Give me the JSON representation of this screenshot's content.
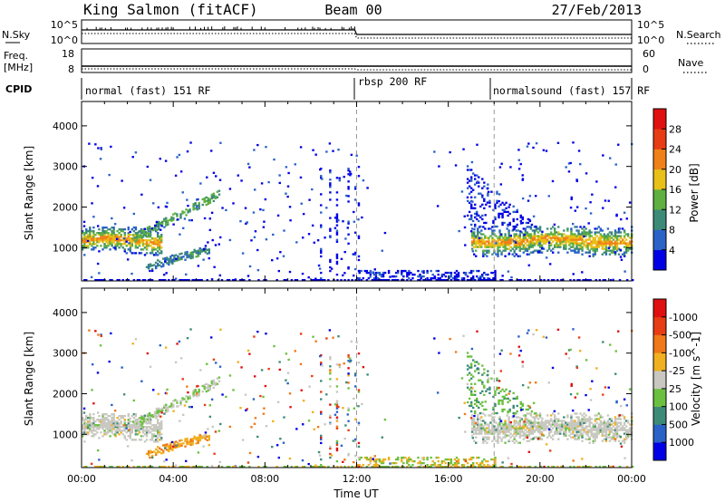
{
  "header": {
    "station": "King Salmon (fitACF)",
    "beam": "Beam 00",
    "date": "27/Feb/2013"
  },
  "strip_sky": {
    "left_label": "N.Sky",
    "right_label": "N.Search",
    "left_ticks": [
      "10^5",
      "10^0"
    ],
    "right_ticks": [
      "10^5",
      "10^0"
    ]
  },
  "strip_freq": {
    "left_label_1": "Freq.",
    "left_label_2": "[MHz]",
    "right_label": "Nave",
    "left_ticks": [
      "18",
      "8"
    ],
    "right_ticks": [
      "60",
      "0"
    ]
  },
  "cpid": {
    "label": "CPID",
    "segments": [
      {
        "label": "normal (fast) 151 RF",
        "start_hour": 0,
        "end_hour": 12
      },
      {
        "label": "rbsp 200 RF",
        "start_hour": 12,
        "end_hour": 18
      },
      {
        "label": "normalsound (fast) 157 RF",
        "start_hour": 18,
        "end_hour": 24
      }
    ]
  },
  "chart_data": [
    {
      "type": "heatmap",
      "title": "",
      "xlabel": "",
      "ylabel": "Slant Range [km]",
      "xlim": [
        0,
        24
      ],
      "ylim": [
        180,
        4600
      ],
      "yticks": [
        1000,
        2000,
        3000,
        4000
      ],
      "colorbar": {
        "label": "Power [dB]",
        "ticks": [
          "4",
          "8",
          "12",
          "16",
          "20",
          "24",
          "28"
        ],
        "colors": [
          "#0000e6",
          "#2a62c8",
          "#3e8a78",
          "#5fb040",
          "#e8c018",
          "#f08018",
          "#e83c14",
          "#e01010"
        ]
      },
      "echo_bands": [
        {
          "name": "main",
          "t_start": 0.0,
          "t_end": 3.5,
          "range_center": 1150,
          "range_width": 350
        },
        {
          "name": "rising arc",
          "t_start": 2.2,
          "t_end": 6.0,
          "range_start": 1200,
          "range_end": 2300
        },
        {
          "name": "lower arc",
          "t_start": 2.8,
          "t_end": 5.6,
          "range_start": 500,
          "range_end": 950
        },
        {
          "name": "recovery",
          "t_start": 17.0,
          "t_end": 24.0,
          "range_center": 1150,
          "range_width": 380
        }
      ]
    },
    {
      "type": "heatmap",
      "title": "",
      "xlabel": "Time UT",
      "ylabel": "Slant Range [km]",
      "xlim": [
        0,
        24
      ],
      "ylim": [
        180,
        4600
      ],
      "yticks": [
        1000,
        2000,
        3000,
        4000
      ],
      "xticks": [
        "00:00",
        "04:00",
        "08:00",
        "12:00",
        "16:00",
        "20:00",
        "00:00"
      ],
      "colorbar": {
        "label": "Velocity [m s^-1]",
        "ticks": [
          "1000",
          "500",
          "100",
          "25",
          "-25",
          "-100",
          "-500",
          "-1000"
        ],
        "colors": [
          "#0000e6",
          "#2a62c8",
          "#3e8a78",
          "#6cc040",
          "#c8c8c0",
          "#f0b020",
          "#f07818",
          "#e83c14",
          "#e01010"
        ]
      }
    }
  ]
}
